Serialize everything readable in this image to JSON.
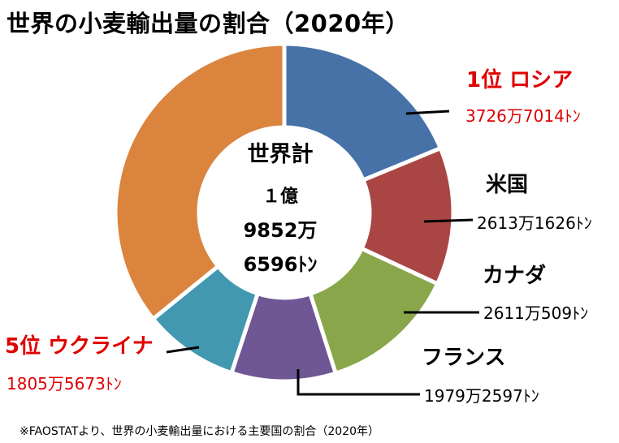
{
  "title": "世界の小麦輸出量の割合（2020年）",
  "center": {
    "line1": "世界計",
    "line2": "１億",
    "line3": "9852万",
    "line4": "6596ﾄﾝ"
  },
  "footnote": "※FAOSTATより、世界の小麦輸出量における主要国の割合（2020年）",
  "colors": {
    "russia": "#4672a8",
    "usa": "#a94644",
    "canada": "#8aa64b",
    "france": "#6f5694",
    "ukraine": "#4198b0",
    "others": "#db843e",
    "highlight": "#e00000"
  },
  "labels": {
    "russia_name": "1位 ロシア",
    "russia_value": "3726万7014ﾄﾝ",
    "usa_name": "米国",
    "usa_value": "2613万1626ﾄﾝ",
    "canada_name": "カナダ",
    "canada_value": "2611万509ﾄﾝ",
    "france_name": "フランス",
    "france_value": "1979万2597ﾄﾝ",
    "ukraine_name": "5位 ウクライナ",
    "ukraine_value": "1805万5673ﾄﾝ"
  },
  "chart_data": {
    "type": "pie",
    "style": "donut",
    "title": "世界の小麦輸出量の割合（2020年）",
    "total_tons": 198526596,
    "unit": "ﾄﾝ",
    "slices": [
      {
        "name": "ロシア",
        "value": 37267014,
        "color": "#4672a8"
      },
      {
        "name": "米国",
        "value": 26131626,
        "color": "#a94644"
      },
      {
        "name": "カナダ",
        "value": 26110509,
        "color": "#8aa64b"
      },
      {
        "name": "フランス",
        "value": 19792597,
        "color": "#6f5694"
      },
      {
        "name": "ウクライナ",
        "value": 18055673,
        "color": "#4198b0"
      },
      {
        "name": "",
        "value": 71169177,
        "color": "#db843e"
      }
    ]
  }
}
